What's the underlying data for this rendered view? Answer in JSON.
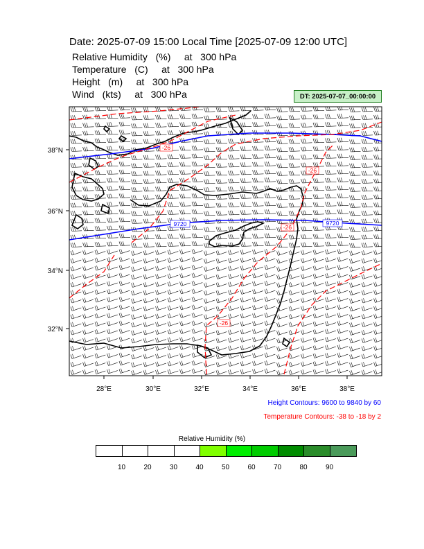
{
  "header": {
    "title": "Date: 2025-07-09  15:00 Local Time [2025-07-09  12:00 UTC]",
    "variables": [
      "Relative Humidity   (%)     at   300 hPa",
      "Temperature   (C)     at   300 hPa",
      "Height   (m)     at   300 hPa",
      "Wind   (kts)     at   300 hPa"
    ],
    "dt_label": "DT: 2025-07-07_00:00:00"
  },
  "map": {
    "lon_ticks": [
      "28°E",
      "30°E",
      "32°E",
      "34°E",
      "36°E",
      "38°E"
    ],
    "lat_ticks": [
      "38°N",
      "36°N",
      "34°N",
      "32°N"
    ],
    "height_labels": [
      "9720",
      "9720"
    ],
    "temp_labels": [
      "-26",
      "-26",
      "-26",
      "-26"
    ],
    "colors": {
      "height": "#0000ff",
      "temperature": "#ff0000",
      "coast": "#000000"
    }
  },
  "legend": {
    "height_contours": "Height Contours: 9600 to 9840 by 60",
    "temp_contours": "Temperature Contours: -38 to -18 by 2"
  },
  "colorbar": {
    "title": "Relative Humidity  (%)",
    "labels": [
      "10",
      "20",
      "30",
      "40",
      "50",
      "60",
      "70",
      "80",
      "90"
    ],
    "colors": [
      "#ffffff",
      "#ffffff",
      "#ffffff",
      "#ffffff",
      "#80ff00",
      "#00ee00",
      "#00cc00",
      "#008c00",
      "#2a8c2a",
      "#4a9a5a"
    ]
  }
}
